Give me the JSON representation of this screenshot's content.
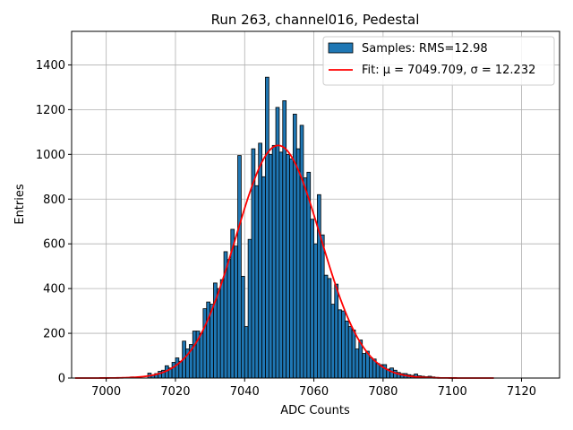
{
  "chart_data": {
    "type": "bar",
    "title": "Run 263, channel016, Pedestal",
    "xlabel": "ADC Counts",
    "ylabel": "Entries",
    "xlim": [
      6990,
      7131
    ],
    "ylim": [
      0,
      1550
    ],
    "xticks": [
      7000,
      7020,
      7040,
      7060,
      7080,
      7100,
      7120
    ],
    "yticks": [
      0,
      200,
      400,
      600,
      800,
      1000,
      1200,
      1400
    ],
    "grid": true,
    "legend_position": "top-right",
    "bin_width": 1,
    "series": [
      {
        "name": "Samples: RMS=12.98",
        "type": "histogram",
        "color": "#1f77b4",
        "edgecolor": "#000000",
        "bins": [
          [
            7003,
            2
          ],
          [
            7007,
            5
          ],
          [
            7008,
            2
          ],
          [
            7012,
            22
          ],
          [
            7013,
            12
          ],
          [
            7014,
            20
          ],
          [
            7015,
            30
          ],
          [
            7016,
            35
          ],
          [
            7017,
            55
          ],
          [
            7018,
            45
          ],
          [
            7019,
            70
          ],
          [
            7020,
            90
          ],
          [
            7021,
            75
          ],
          [
            7022,
            165
          ],
          [
            7023,
            130
          ],
          [
            7024,
            150
          ],
          [
            7025,
            210
          ],
          [
            7026,
            210
          ],
          [
            7027,
            200
          ],
          [
            7028,
            310
          ],
          [
            7029,
            340
          ],
          [
            7030,
            330
          ],
          [
            7031,
            425
          ],
          [
            7032,
            400
          ],
          [
            7033,
            440
          ],
          [
            7034,
            565
          ],
          [
            7035,
            530
          ],
          [
            7036,
            665
          ],
          [
            7037,
            590
          ],
          [
            7038,
            995
          ],
          [
            7039,
            455
          ],
          [
            7040,
            230
          ],
          [
            7041,
            620
          ],
          [
            7042,
            1025
          ],
          [
            7043,
            860
          ],
          [
            7044,
            1050
          ],
          [
            7045,
            900
          ],
          [
            7046,
            1345
          ],
          [
            7047,
            1000
          ],
          [
            7048,
            1040
          ],
          [
            7049,
            1210
          ],
          [
            7050,
            1010
          ],
          [
            7051,
            1240
          ],
          [
            7052,
            1000
          ],
          [
            7053,
            980
          ],
          [
            7054,
            1180
          ],
          [
            7055,
            1025
          ],
          [
            7056,
            1130
          ],
          [
            7057,
            895
          ],
          [
            7058,
            920
          ],
          [
            7059,
            710
          ],
          [
            7060,
            600
          ],
          [
            7061,
            820
          ],
          [
            7062,
            640
          ],
          [
            7063,
            460
          ],
          [
            7064,
            445
          ],
          [
            7065,
            330
          ],
          [
            7066,
            420
          ],
          [
            7067,
            305
          ],
          [
            7068,
            300
          ],
          [
            7069,
            255
          ],
          [
            7070,
            230
          ],
          [
            7071,
            215
          ],
          [
            7072,
            130
          ],
          [
            7073,
            170
          ],
          [
            7074,
            110
          ],
          [
            7075,
            120
          ],
          [
            7076,
            90
          ],
          [
            7077,
            85
          ],
          [
            7078,
            65
          ],
          [
            7079,
            60
          ],
          [
            7080,
            60
          ],
          [
            7081,
            40
          ],
          [
            7082,
            45
          ],
          [
            7083,
            35
          ],
          [
            7084,
            25
          ],
          [
            7085,
            20
          ],
          [
            7086,
            20
          ],
          [
            7087,
            15
          ],
          [
            7088,
            12
          ],
          [
            7089,
            18
          ],
          [
            7090,
            10
          ],
          [
            7091,
            8
          ],
          [
            7092,
            6
          ],
          [
            7093,
            8
          ],
          [
            7094,
            5
          ],
          [
            7095,
            3
          ],
          [
            7097,
            2
          ]
        ]
      },
      {
        "name": "Fit: μ = 7049.709, σ = 12.232",
        "type": "line",
        "color": "#ff0000",
        "model": "gaussian",
        "mu": 7049.709,
        "sigma": 12.232,
        "amplitude": 1040,
        "x_range": [
          6991,
          7112
        ]
      }
    ]
  }
}
